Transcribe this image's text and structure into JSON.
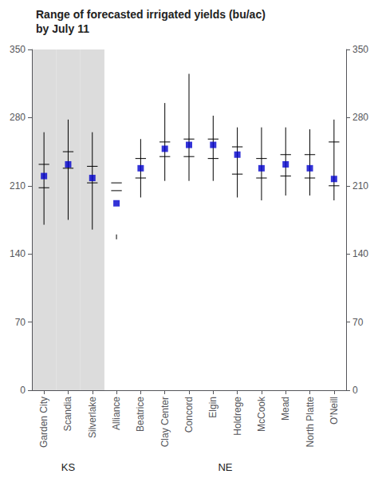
{
  "chart_data": {
    "type": "range",
    "title": "Range of forecasted irrigated yields (bu/ac)",
    "subtitle": "by July 11",
    "categories": [
      "Garden City",
      "Scandia",
      "Silverlake",
      "Alliance",
      "Beatrice",
      "Clay Center",
      "Concord",
      "Elgin",
      "Holdrege",
      "McCook",
      "Mead",
      "North Platte",
      "O'Neill"
    ],
    "series": [
      {
        "type": "range",
        "color": "#000000",
        "lower_inner": [
          208,
          228,
          213,
          205,
          218,
          240,
          240,
          238,
          222,
          218,
          220,
          218,
          210
        ],
        "upper_inner": [
          232,
          245,
          230,
          213,
          238,
          255,
          258,
          258,
          250,
          238,
          242,
          242,
          255
        ],
        "lower_outer": [
          170,
          175,
          165,
          160,
          198,
          215,
          215,
          215,
          198,
          195,
          200,
          200,
          195
        ],
        "upper_outer": [
          265,
          278,
          265,
          155,
          258,
          295,
          325,
          282,
          270,
          270,
          270,
          268,
          278
        ]
      },
      {
        "type": "scatter",
        "marker": "square",
        "color": "#0000CD",
        "values": [
          220,
          232,
          218,
          192,
          228,
          248,
          252,
          252,
          242,
          228,
          232,
          228,
          217
        ]
      }
    ],
    "state_groups": [
      {
        "label": "KS",
        "color": "#DCDCDC",
        "categories": [
          "Garden City",
          "Scandia",
          "Silverlake"
        ]
      },
      {
        "label": "NE",
        "categories": [
          "Alliance",
          "Beatrice",
          "Clay Center",
          "Concord",
          "Elgin",
          "Holdrege",
          "McCook",
          "Mead",
          "North Platte",
          "O'Neill"
        ]
      }
    ],
    "ylim": [
      0,
      350
    ],
    "yticks": [
      0,
      70,
      140,
      210,
      280,
      350
    ],
    "y2lim": [
      0,
      350
    ],
    "y2ticks": [
      0,
      70,
      140,
      210,
      280,
      350
    ],
    "grid": false
  }
}
